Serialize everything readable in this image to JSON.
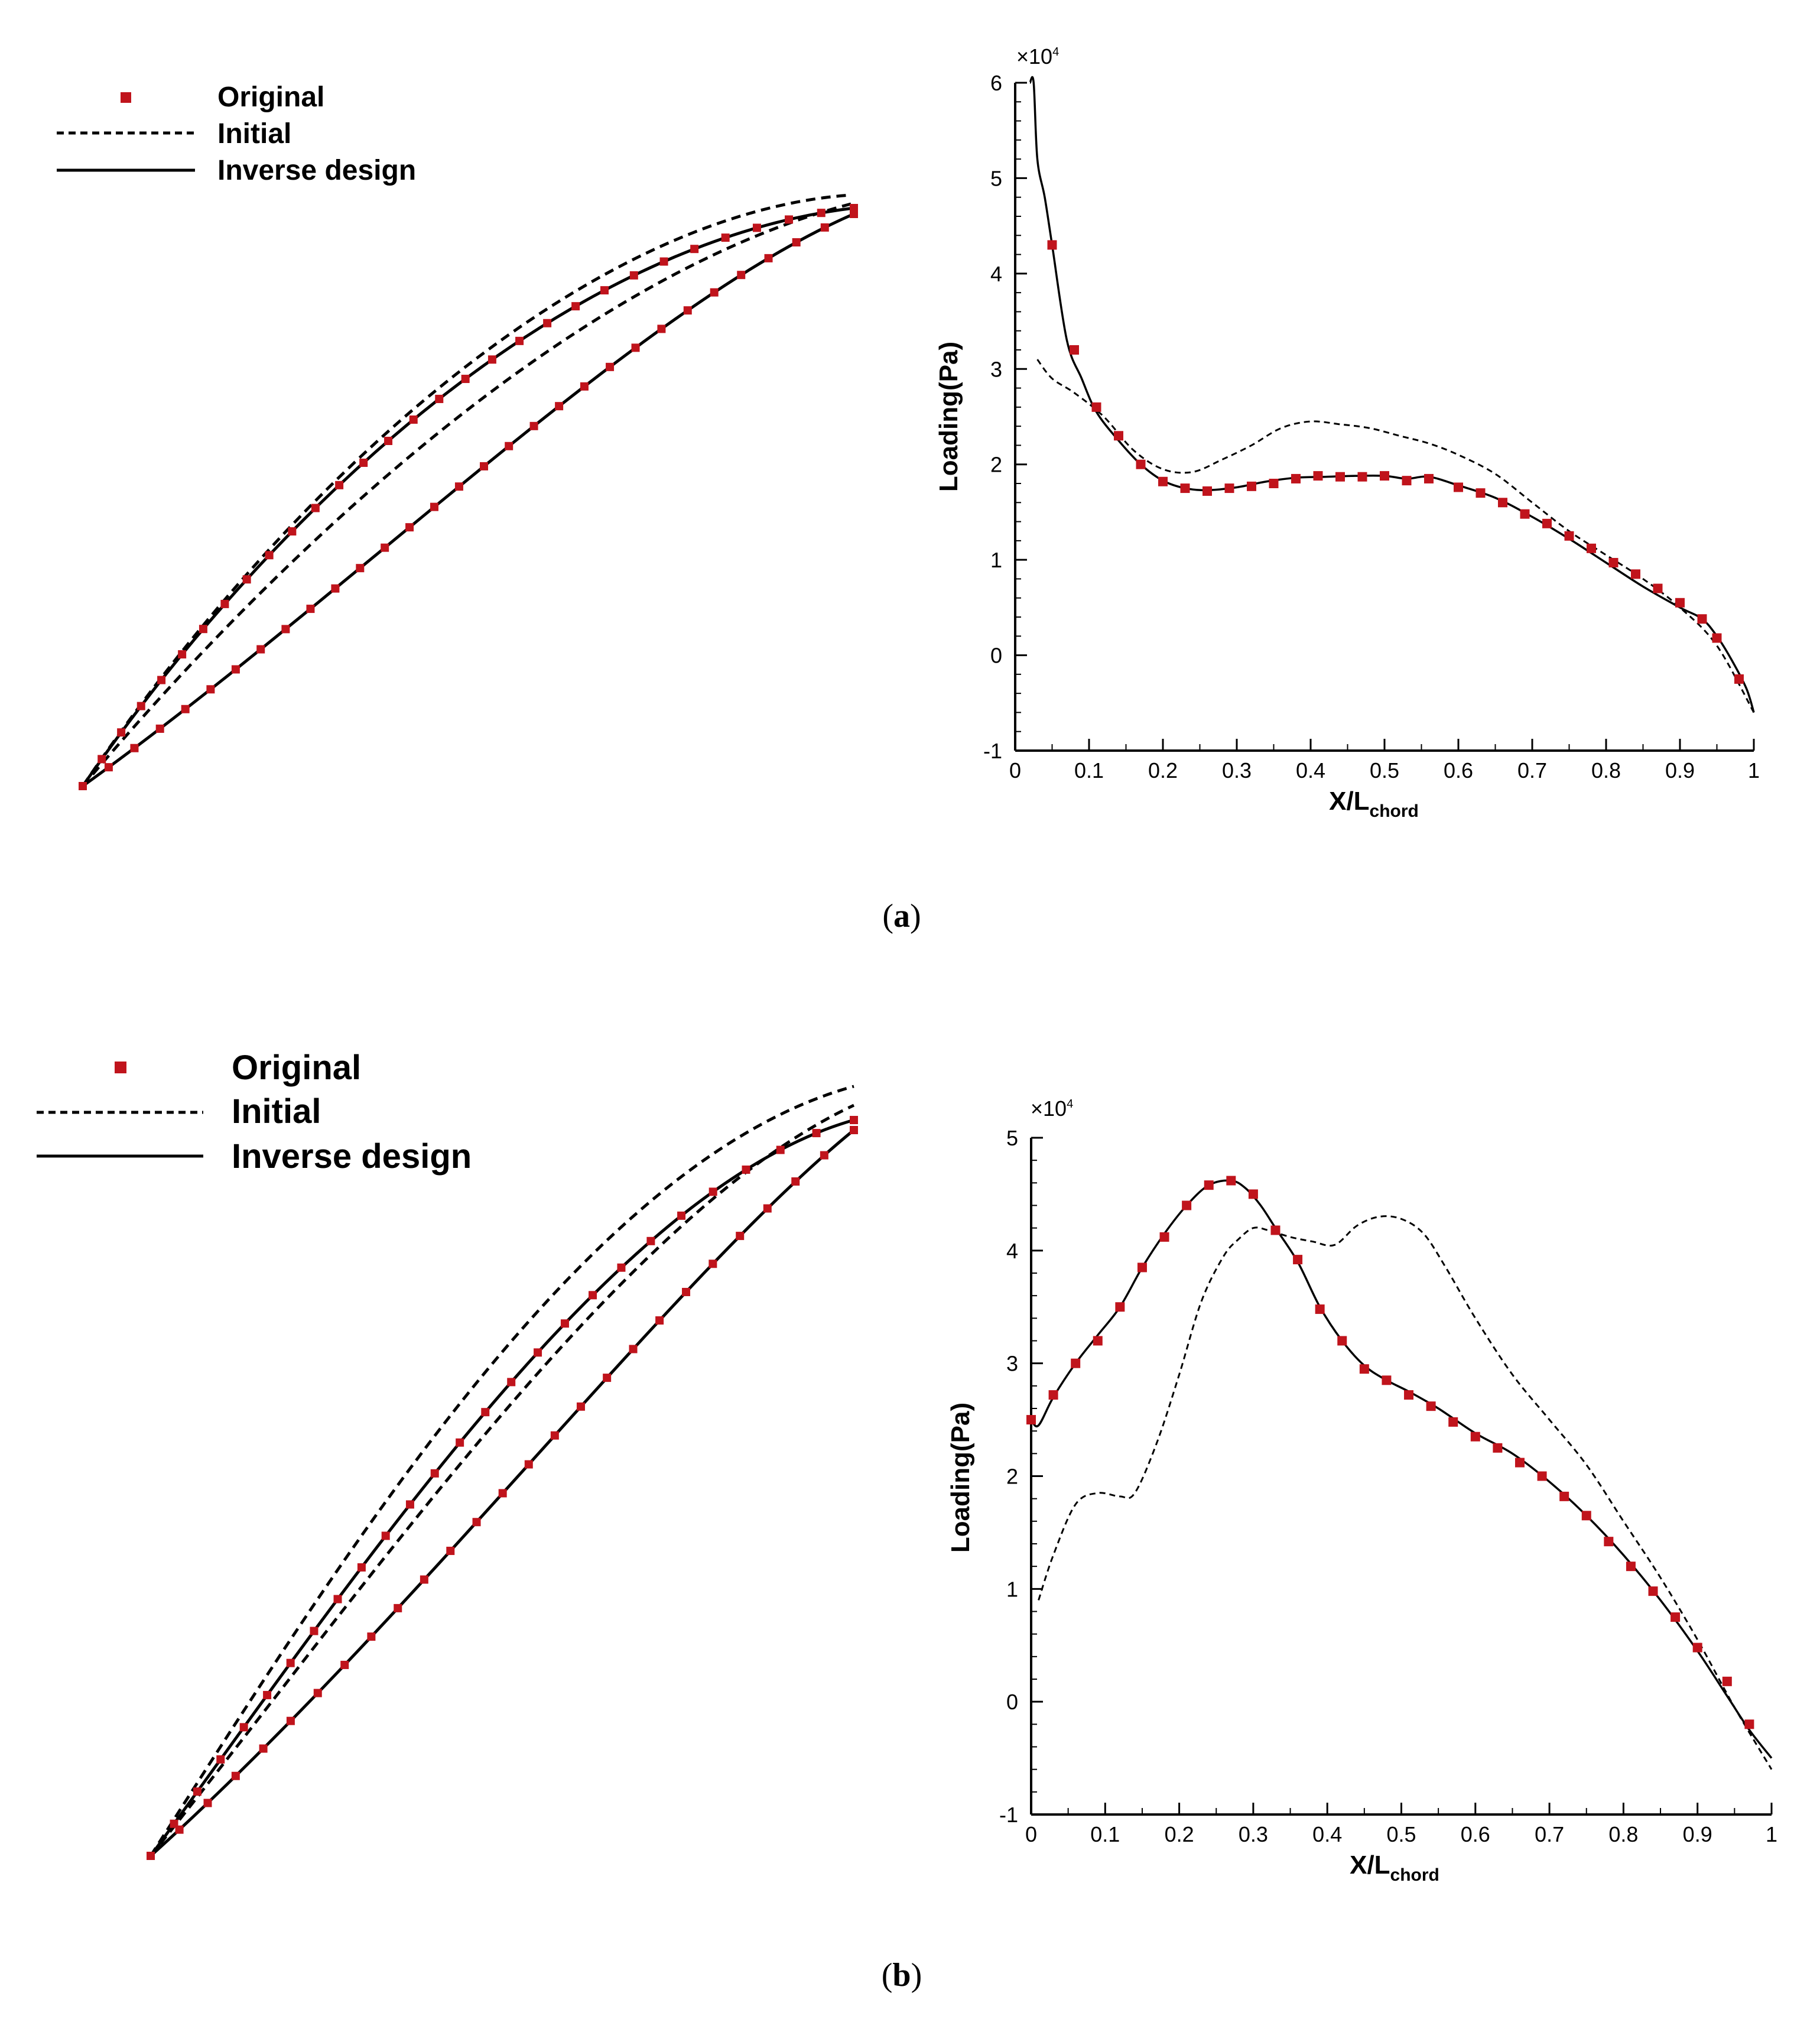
{
  "legend": {
    "original": "Original",
    "initial": "Initial",
    "inverse": "Inverse design"
  },
  "colors": {
    "marker": "#c0141c",
    "line": "#000000"
  },
  "panels": [
    {
      "caption_letter": "a",
      "caption_open": "(",
      "caption_close": ")",
      "multiplier_base": "×10",
      "multiplier_exp": "4"
    },
    {
      "caption_letter": "b",
      "caption_open": "(",
      "caption_close": ")",
      "multiplier_base": "×10",
      "multiplier_exp": "4"
    }
  ],
  "chart_data": [
    {
      "type": "line",
      "title": "",
      "xlabel": "X/L",
      "xlabel_sub": "chord",
      "ylabel": "Loading(Pa)",
      "multiplier": "×10^4",
      "xlim": [
        0,
        1
      ],
      "ylim": [
        -1,
        6
      ],
      "xticks": [
        "0",
        "0.1",
        "0.2",
        "0.3",
        "0.4",
        "0.5",
        "0.6",
        "0.7",
        "0.8",
        "0.9",
        "1"
      ],
      "yticks": [
        "-1",
        "0",
        "1",
        "2",
        "3",
        "4",
        "5",
        "6"
      ],
      "series": [
        {
          "name": "Initial",
          "style": "dashed",
          "x": [
            0.03,
            0.05,
            0.08,
            0.12,
            0.16,
            0.2,
            0.24,
            0.28,
            0.32,
            0.36,
            0.4,
            0.44,
            0.48,
            0.52,
            0.56,
            0.6,
            0.65,
            0.7,
            0.75,
            0.8,
            0.85,
            0.9,
            0.95,
            1.0
          ],
          "y": [
            3.1,
            2.9,
            2.75,
            2.5,
            2.15,
            1.95,
            1.92,
            2.05,
            2.2,
            2.38,
            2.45,
            2.42,
            2.38,
            2.3,
            2.22,
            2.1,
            1.9,
            1.6,
            1.3,
            1.05,
            0.8,
            0.5,
            0.1,
            -0.6
          ]
        },
        {
          "name": "Inverse design",
          "style": "solid",
          "x": [
            0.02,
            0.025,
            0.03,
            0.04,
            0.05,
            0.07,
            0.09,
            0.11,
            0.14,
            0.17,
            0.2,
            0.23,
            0.26,
            0.3,
            0.34,
            0.38,
            0.42,
            0.46,
            0.5,
            0.53,
            0.56,
            0.6,
            0.65,
            0.7,
            0.75,
            0.8,
            0.85,
            0.9,
            0.93,
            0.95,
            0.97,
            0.99,
            1.0
          ],
          "y": [
            6.0,
            6.0,
            5.2,
            4.8,
            4.3,
            3.3,
            2.9,
            2.55,
            2.25,
            2.0,
            1.83,
            1.75,
            1.73,
            1.76,
            1.82,
            1.86,
            1.87,
            1.88,
            1.88,
            1.85,
            1.87,
            1.78,
            1.65,
            1.45,
            1.22,
            0.97,
            0.72,
            0.5,
            0.38,
            0.2,
            -0.05,
            -0.35,
            -0.6
          ]
        },
        {
          "name": "Original",
          "style": "markers",
          "x": [
            0.05,
            0.08,
            0.11,
            0.14,
            0.17,
            0.2,
            0.23,
            0.26,
            0.29,
            0.32,
            0.35,
            0.38,
            0.41,
            0.44,
            0.47,
            0.5,
            0.53,
            0.56,
            0.6,
            0.63,
            0.66,
            0.69,
            0.72,
            0.75,
            0.78,
            0.81,
            0.84,
            0.87,
            0.9,
            0.93,
            0.95,
            0.98
          ],
          "y": [
            4.3,
            3.2,
            2.6,
            2.3,
            2.0,
            1.82,
            1.75,
            1.72,
            1.75,
            1.77,
            1.8,
            1.85,
            1.88,
            1.87,
            1.87,
            1.88,
            1.83,
            1.85,
            1.76,
            1.7,
            1.6,
            1.48,
            1.38,
            1.25,
            1.12,
            0.97,
            0.85,
            0.7,
            0.55,
            0.38,
            0.18,
            -0.25
          ]
        }
      ]
    },
    {
      "type": "line",
      "title": "",
      "xlabel": "X/L",
      "xlabel_sub": "chord",
      "ylabel": "Loading(Pa)",
      "multiplier": "×10^4",
      "xlim": [
        0,
        1
      ],
      "ylim": [
        -1,
        5
      ],
      "xticks": [
        "0",
        "0.1",
        "0.2",
        "0.3",
        "0.4",
        "0.5",
        "0.6",
        "0.7",
        "0.8",
        "0.9",
        "1"
      ],
      "yticks": [
        "-1",
        "0",
        "1",
        "2",
        "3",
        "4",
        "5"
      ],
      "series": [
        {
          "name": "Initial",
          "style": "dashed",
          "x": [
            0.01,
            0.03,
            0.06,
            0.09,
            0.12,
            0.14,
            0.17,
            0.2,
            0.23,
            0.26,
            0.28,
            0.3,
            0.32,
            0.35,
            0.38,
            0.41,
            0.44,
            0.47,
            0.5,
            0.53,
            0.56,
            0.6,
            0.65,
            0.7,
            0.75,
            0.8,
            0.85,
            0.9,
            0.95,
            1.0
          ],
          "y": [
            0.9,
            1.3,
            1.75,
            1.85,
            1.82,
            1.85,
            2.3,
            2.9,
            3.55,
            3.95,
            4.1,
            4.2,
            4.18,
            4.12,
            4.08,
            4.05,
            4.22,
            4.3,
            4.28,
            4.15,
            3.85,
            3.4,
            2.9,
            2.5,
            2.1,
            1.6,
            1.1,
            0.55,
            -0.05,
            -0.6
          ]
        },
        {
          "name": "Inverse design",
          "style": "solid",
          "x": [
            0.0,
            0.01,
            0.03,
            0.06,
            0.09,
            0.12,
            0.15,
            0.18,
            0.21,
            0.24,
            0.27,
            0.29,
            0.31,
            0.33,
            0.36,
            0.39,
            0.42,
            0.45,
            0.48,
            0.51,
            0.55,
            0.6,
            0.65,
            0.7,
            0.75,
            0.8,
            0.85,
            0.9,
            0.94,
            0.97,
            1.0
          ],
          "y": [
            2.5,
            2.45,
            2.7,
            3.0,
            3.25,
            3.5,
            3.85,
            4.15,
            4.4,
            4.58,
            4.62,
            4.55,
            4.4,
            4.2,
            3.9,
            3.5,
            3.2,
            2.98,
            2.85,
            2.75,
            2.6,
            2.38,
            2.2,
            1.95,
            1.65,
            1.3,
            0.9,
            0.45,
            0.05,
            -0.25,
            -0.5
          ]
        },
        {
          "name": "Original",
          "style": "markers",
          "x": [
            0.0,
            0.03,
            0.06,
            0.09,
            0.12,
            0.15,
            0.18,
            0.21,
            0.24,
            0.27,
            0.3,
            0.33,
            0.36,
            0.39,
            0.42,
            0.45,
            0.48,
            0.51,
            0.54,
            0.57,
            0.6,
            0.63,
            0.66,
            0.69,
            0.72,
            0.75,
            0.78,
            0.81,
            0.84,
            0.87,
            0.9,
            0.94,
            0.97
          ],
          "y": [
            2.5,
            2.72,
            3.0,
            3.2,
            3.5,
            3.85,
            4.12,
            4.4,
            4.58,
            4.62,
            4.5,
            4.18,
            3.92,
            3.48,
            3.2,
            2.95,
            2.85,
            2.72,
            2.62,
            2.48,
            2.35,
            2.25,
            2.12,
            2.0,
            1.82,
            1.65,
            1.42,
            1.2,
            0.98,
            0.75,
            0.48,
            0.18,
            -0.2
          ]
        }
      ]
    }
  ]
}
